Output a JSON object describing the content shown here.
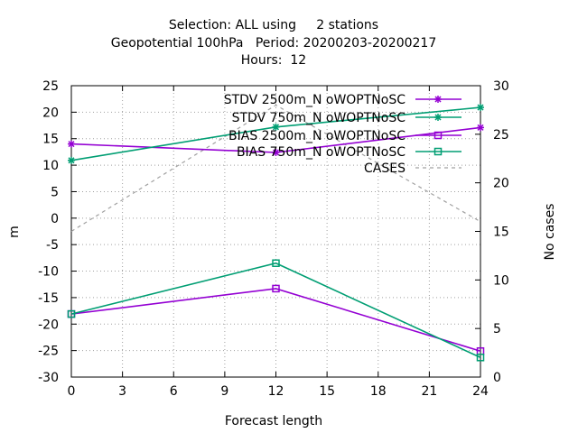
{
  "chart_data": {
    "type": "line",
    "title_lines": [
      "Selection: ALL using     2 stations",
      "Geopotential 100hPa   Period: 20200203-20200217",
      "Hours:  12"
    ],
    "xlabel": "Forecast length",
    "ylabel": "m",
    "y2label": "No cases",
    "x_ticks": [
      0,
      3,
      6,
      9,
      12,
      15,
      18,
      21,
      24
    ],
    "y_ticks": [
      25,
      20,
      15,
      10,
      5,
      0,
      -5,
      -10,
      -15,
      -20,
      -25,
      -30
    ],
    "y2_ticks": [
      30,
      25,
      20,
      15,
      10,
      5,
      0
    ],
    "xlim": [
      0,
      24
    ],
    "ylim": [
      -30,
      25
    ],
    "y2lim": [
      0,
      30
    ],
    "grid": true,
    "legend_position": "top-right",
    "x": [
      0,
      12,
      24
    ],
    "series": [
      {
        "name": "STDV 2500m_N oWOPTNoSC",
        "axis": "y",
        "marker": "star",
        "color": "#9400d3",
        "values": [
          14.0,
          12.4,
          17.1
        ]
      },
      {
        "name": "STDV 750m_N oWOPTNoSC",
        "axis": "y",
        "marker": "star",
        "color": "#009e73",
        "values": [
          10.9,
          17.2,
          20.9
        ]
      },
      {
        "name": "BIAS 2500m_N oWOPTNoSC",
        "axis": "y",
        "marker": "square",
        "color": "#9400d3",
        "values": [
          -18.1,
          -13.3,
          -25.1
        ]
      },
      {
        "name": "BIAS 750m_N oWOPTNoSC",
        "axis": "y",
        "marker": "square",
        "color": "#009e73",
        "values": [
          -18.1,
          -8.5,
          -26.3
        ]
      },
      {
        "name": "CASES",
        "axis": "y2",
        "marker": "none",
        "color": "#a0a0a0",
        "dashed": true,
        "values": [
          15,
          28,
          16
        ]
      }
    ]
  }
}
